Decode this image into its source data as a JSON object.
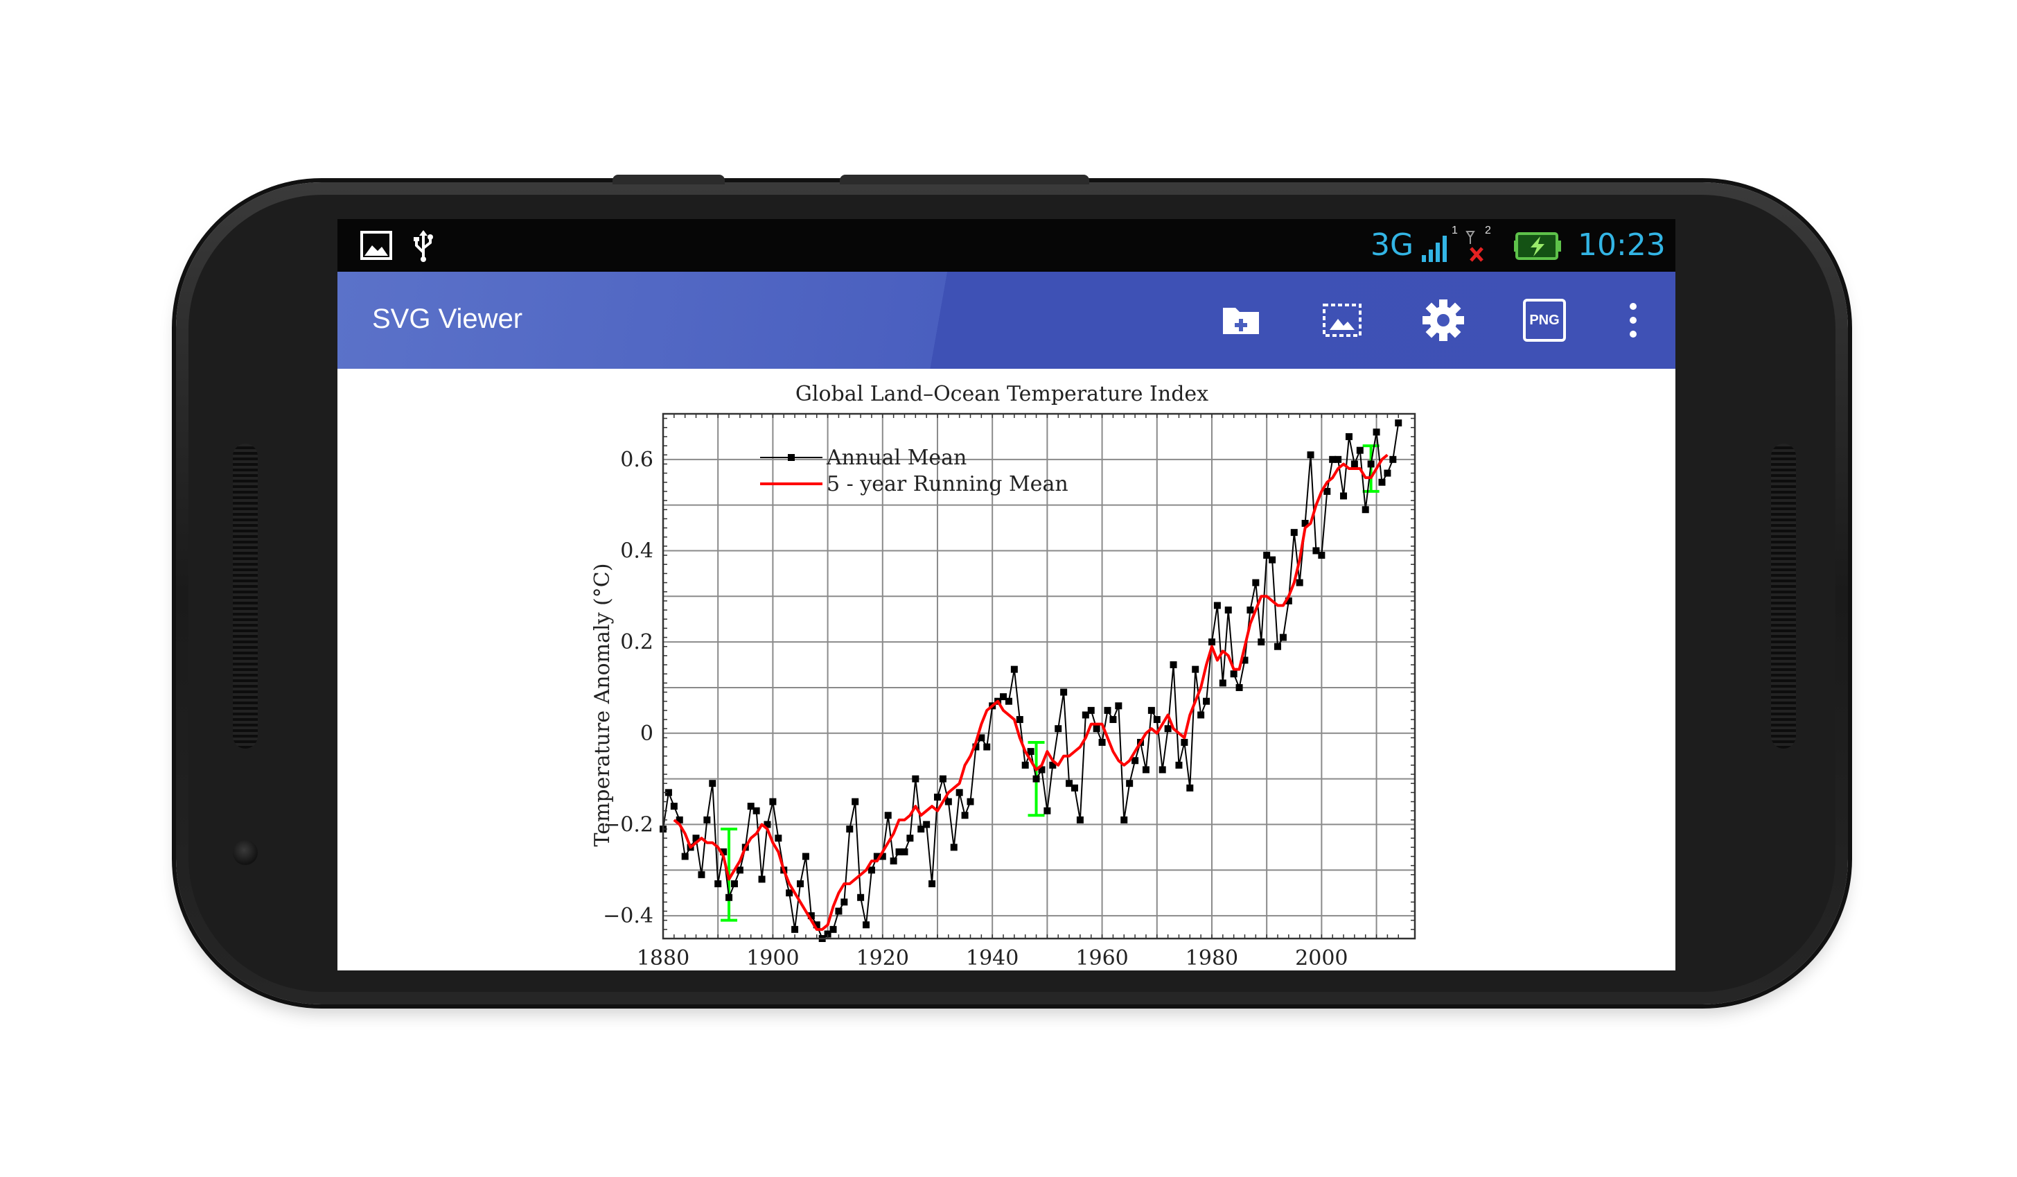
{
  "app": {
    "title": "SVG Viewer"
  },
  "statusbar": {
    "network": "3G",
    "sim_label": "1",
    "sim2_label": "2",
    "time": "10:23",
    "left_icons": [
      "gallery-icon",
      "usb-icon"
    ],
    "accent": "#33b5e5"
  },
  "toolbar": {
    "actions": [
      "folder-add-icon",
      "image-select-icon",
      "settings-icon",
      "png-export-icon",
      "more-vert-icon"
    ],
    "png_label": "PNG",
    "color": "#3f51b5"
  },
  "chart_data": {
    "type": "line",
    "title": "Global Land–Ocean Temperature Index",
    "xlabel": "",
    "ylabel": "Temperature Anomaly (°C)",
    "xlim": [
      1880,
      2017
    ],
    "ylim": [
      -0.45,
      0.7
    ],
    "xticks": [
      1880,
      1900,
      1920,
      1940,
      1960,
      1980,
      2000
    ],
    "yticks": [
      -0.4,
      -0.2,
      0,
      0.2,
      0.4,
      0.6
    ],
    "ytick_labels": [
      "−0.4",
      "−0.2",
      "0",
      "0.2",
      "0.4",
      "0.6"
    ],
    "grid": true,
    "legend_position": "top-left",
    "series": [
      {
        "name": "Annual Mean",
        "color": "#000000",
        "marker": "square",
        "x": [
          1880,
          1881,
          1882,
          1883,
          1884,
          1885,
          1886,
          1887,
          1888,
          1889,
          1890,
          1891,
          1892,
          1893,
          1894,
          1895,
          1896,
          1897,
          1898,
          1899,
          1900,
          1901,
          1902,
          1903,
          1904,
          1905,
          1906,
          1907,
          1908,
          1909,
          1910,
          1911,
          1912,
          1913,
          1914,
          1915,
          1916,
          1917,
          1918,
          1919,
          1920,
          1921,
          1922,
          1923,
          1924,
          1925,
          1926,
          1927,
          1928,
          1929,
          1930,
          1931,
          1932,
          1933,
          1934,
          1935,
          1936,
          1937,
          1938,
          1939,
          1940,
          1941,
          1942,
          1943,
          1944,
          1945,
          1946,
          1947,
          1948,
          1949,
          1950,
          1951,
          1952,
          1953,
          1954,
          1955,
          1956,
          1957,
          1958,
          1959,
          1960,
          1961,
          1962,
          1963,
          1964,
          1965,
          1966,
          1967,
          1968,
          1969,
          1970,
          1971,
          1972,
          1973,
          1974,
          1975,
          1976,
          1977,
          1978,
          1979,
          1980,
          1981,
          1982,
          1983,
          1984,
          1985,
          1986,
          1987,
          1988,
          1989,
          1990,
          1991,
          1992,
          1993,
          1994,
          1995,
          1996,
          1997,
          1998,
          1999,
          2000,
          2001,
          2002,
          2003,
          2004,
          2005,
          2006,
          2007,
          2008,
          2009,
          2010,
          2011,
          2012,
          2013,
          2014
        ],
        "y": [
          -0.21,
          -0.13,
          -0.16,
          -0.19,
          -0.27,
          -0.25,
          -0.23,
          -0.31,
          -0.19,
          -0.11,
          -0.33,
          -0.26,
          -0.36,
          -0.33,
          -0.3,
          -0.25,
          -0.16,
          -0.17,
          -0.32,
          -0.2,
          -0.15,
          -0.23,
          -0.3,
          -0.35,
          -0.43,
          -0.33,
          -0.27,
          -0.4,
          -0.42,
          -0.45,
          -0.44,
          -0.43,
          -0.39,
          -0.37,
          -0.21,
          -0.15,
          -0.36,
          -0.42,
          -0.3,
          -0.27,
          -0.27,
          -0.18,
          -0.28,
          -0.26,
          -0.26,
          -0.23,
          -0.1,
          -0.21,
          -0.2,
          -0.33,
          -0.14,
          -0.1,
          -0.15,
          -0.25,
          -0.13,
          -0.18,
          -0.15,
          -0.03,
          -0.01,
          -0.03,
          0.06,
          0.07,
          0.08,
          0.07,
          0.14,
          0.03,
          -0.07,
          -0.04,
          -0.1,
          -0.08,
          -0.17,
          -0.07,
          0.01,
          0.09,
          -0.11,
          -0.12,
          -0.19,
          0.04,
          0.05,
          0.01,
          -0.02,
          0.05,
          0.03,
          0.06,
          -0.19,
          -0.11,
          -0.06,
          -0.02,
          -0.08,
          0.05,
          0.03,
          -0.08,
          0.01,
          0.15,
          -0.07,
          -0.02,
          -0.12,
          0.14,
          0.04,
          0.07,
          0.2,
          0.28,
          0.11,
          0.27,
          0.13,
          0.1,
          0.16,
          0.27,
          0.33,
          0.2,
          0.39,
          0.38,
          0.19,
          0.21,
          0.29,
          0.44,
          0.33,
          0.46,
          0.61,
          0.4,
          0.39,
          0.53,
          0.6,
          0.6,
          0.52,
          0.65,
          0.59,
          0.62,
          0.49,
          0.59,
          0.66,
          0.55,
          0.57,
          0.6,
          0.68
        ]
      },
      {
        "name": "5 - year Running Mean",
        "color": "#ff0000",
        "x": [
          1882,
          1883,
          1884,
          1885,
          1886,
          1887,
          1888,
          1889,
          1890,
          1891,
          1892,
          1893,
          1894,
          1895,
          1896,
          1897,
          1898,
          1899,
          1900,
          1901,
          1902,
          1903,
          1904,
          1905,
          1906,
          1907,
          1908,
          1909,
          1910,
          1911,
          1912,
          1913,
          1914,
          1915,
          1916,
          1917,
          1918,
          1919,
          1920,
          1921,
          1922,
          1923,
          1924,
          1925,
          1926,
          1927,
          1928,
          1929,
          1930,
          1931,
          1932,
          1933,
          1934,
          1935,
          1936,
          1937,
          1938,
          1939,
          1940,
          1941,
          1942,
          1943,
          1944,
          1945,
          1946,
          1947,
          1948,
          1949,
          1950,
          1951,
          1952,
          1953,
          1954,
          1955,
          1956,
          1957,
          1958,
          1959,
          1960,
          1961,
          1962,
          1963,
          1964,
          1965,
          1966,
          1967,
          1968,
          1969,
          1970,
          1971,
          1972,
          1973,
          1974,
          1975,
          1976,
          1977,
          1978,
          1979,
          1980,
          1981,
          1982,
          1983,
          1984,
          1985,
          1986,
          1987,
          1988,
          1989,
          1990,
          1991,
          1992,
          1993,
          1994,
          1995,
          1996,
          1997,
          1998,
          1999,
          2000,
          2001,
          2002,
          2003,
          2004,
          2005,
          2006,
          2007,
          2008,
          2009,
          2010,
          2011,
          2012
        ],
        "y": [
          -0.19,
          -0.2,
          -0.22,
          -0.25,
          -0.24,
          -0.23,
          -0.24,
          -0.24,
          -0.25,
          -0.27,
          -0.32,
          -0.3,
          -0.28,
          -0.25,
          -0.23,
          -0.22,
          -0.2,
          -0.21,
          -0.24,
          -0.26,
          -0.3,
          -0.33,
          -0.35,
          -0.37,
          -0.39,
          -0.41,
          -0.43,
          -0.43,
          -0.42,
          -0.38,
          -0.35,
          -0.33,
          -0.33,
          -0.32,
          -0.31,
          -0.3,
          -0.28,
          -0.28,
          -0.26,
          -0.24,
          -0.22,
          -0.19,
          -0.19,
          -0.18,
          -0.16,
          -0.18,
          -0.17,
          -0.16,
          -0.17,
          -0.15,
          -0.13,
          -0.12,
          -0.11,
          -0.07,
          -0.05,
          -0.02,
          0.02,
          0.05,
          0.06,
          0.07,
          0.05,
          0.04,
          0.03,
          -0.01,
          -0.04,
          -0.06,
          -0.08,
          -0.07,
          -0.04,
          -0.06,
          -0.07,
          -0.05,
          -0.05,
          -0.04,
          -0.03,
          -0.01,
          0.02,
          0.02,
          0.02,
          -0.01,
          -0.04,
          -0.06,
          -0.07,
          -0.06,
          -0.04,
          -0.02,
          0.0,
          0.01,
          0.0,
          0.02,
          0.04,
          0.01,
          0.0,
          -0.01,
          0.04,
          0.07,
          0.1,
          0.15,
          0.19,
          0.16,
          0.18,
          0.17,
          0.14,
          0.14,
          0.19,
          0.24,
          0.27,
          0.3,
          0.3,
          0.29,
          0.28,
          0.28,
          0.3,
          0.33,
          0.38,
          0.45,
          0.46,
          0.5,
          0.53,
          0.55,
          0.56,
          0.58,
          0.59,
          0.58,
          0.58,
          0.58,
          0.56,
          0.56,
          0.58,
          0.6,
          0.61
        ]
      }
    ],
    "error_bars": {
      "color": "#00ff00",
      "x": [
        1892,
        1948,
        2009
      ],
      "y": [
        -0.31,
        -0.1,
        0.58
      ],
      "err": [
        0.1,
        0.08,
        0.05
      ]
    }
  }
}
